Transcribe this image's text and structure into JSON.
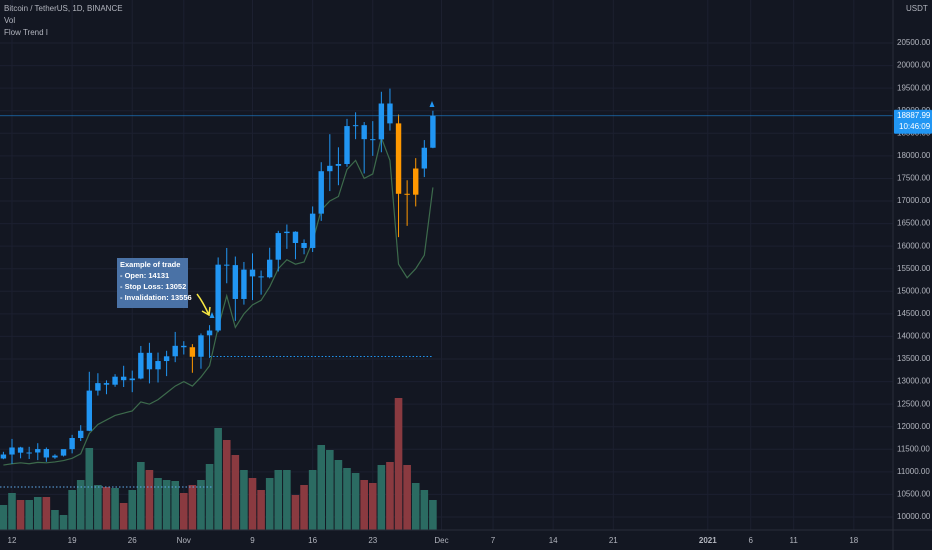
{
  "header": {
    "symbol": "Bitcoin / TetherUS, 1D, BINANCE",
    "indicators": [
      "Vol",
      "Flow Trend I"
    ]
  },
  "chart_data": {
    "type": "candlestick",
    "y_unit": "USDT",
    "categories": [
      null,
      "12",
      null,
      null,
      null,
      null,
      null,
      null,
      "19",
      null,
      null,
      null,
      null,
      null,
      null,
      "26",
      null,
      null,
      null,
      null,
      null,
      "Nov",
      null,
      null,
      null,
      null,
      null,
      null,
      null,
      "9",
      null,
      null,
      null,
      null,
      null,
      null,
      "16",
      null,
      null,
      null,
      null,
      null,
      null,
      "23",
      null,
      null,
      null,
      null,
      null,
      null,
      null,
      "Dec",
      null,
      null,
      null,
      null,
      null,
      "7",
      null,
      null,
      null,
      null,
      null,
      null,
      "14",
      null,
      null,
      null,
      null,
      null,
      null,
      "21",
      null,
      null,
      null,
      null,
      null,
      null,
      null,
      null,
      null,
      null,
      "2021",
      null,
      null,
      null,
      null,
      "6",
      null,
      null,
      null,
      null,
      "11",
      null,
      null,
      null,
      null,
      null,
      null,
      "18",
      null,
      null,
      null,
      null
    ],
    "open": [
      11296,
      11384,
      11540,
      11425,
      11429,
      11505,
      11319,
      11360,
      11503,
      11750,
      11910,
      12800,
      12966,
      12931,
      13108,
      13031,
      13068,
      13637,
      13272,
      13455,
      13560,
      13792,
      13761,
      13550,
      14025,
      14131,
      15590,
      15580,
      14830,
      15480,
      15330,
      15310,
      15700,
      16290,
      16320,
      16070,
      15960,
      16720,
      17660,
      17780,
      17820,
      18660,
      18680,
      18370,
      18365,
      19160,
      18720,
      17160,
      17140,
      17720,
      18180,
      null,
      null,
      null,
      null,
      null,
      null,
      null,
      null,
      null,
      null,
      null,
      null,
      null,
      null,
      null,
      null,
      null,
      null,
      null,
      null,
      null,
      null,
      null,
      null,
      null,
      null,
      null,
      null,
      null,
      null,
      null,
      null,
      null,
      null,
      null,
      null,
      null,
      null,
      null,
      null,
      null,
      null,
      null,
      null,
      null,
      null,
      null,
      null,
      null,
      null,
      null,
      null,
      null
    ],
    "high": [
      11444,
      11730,
      11555,
      11555,
      11635,
      11540,
      11390,
      11490,
      11820,
      12034,
      13217,
      13185,
      13027,
      13164,
      13350,
      13244,
      13789,
      13859,
      13642,
      13682,
      14100,
      13895,
      13830,
      14066,
      14250,
      15750,
      15960,
      15770,
      15650,
      15840,
      15460,
      15965,
      16340,
      16480,
      16330,
      16150,
      16880,
      17860,
      18480,
      18190,
      18820,
      18965,
      18750,
      18770,
      19420,
      19490,
      18915,
      17460,
      17950,
      18350,
      19000,
      null,
      null,
      null,
      null,
      null,
      null,
      null,
      null,
      null,
      null,
      null,
      null,
      null,
      null,
      null,
      null,
      null,
      null,
      null,
      null,
      null,
      null,
      null,
      null,
      null,
      null,
      null,
      null,
      null,
      null,
      null,
      null,
      null,
      null,
      null,
      null,
      null,
      null,
      null,
      null,
      null,
      null,
      null,
      null,
      null,
      null,
      null,
      null,
      null,
      null,
      null,
      null,
      null
    ],
    "low": [
      11280,
      11177,
      11300,
      11285,
      11260,
      11223,
      11290,
      11340,
      11410,
      11683,
      11900,
      12690,
      12720,
      12885,
      12880,
      12765,
      13050,
      12960,
      12980,
      13121,
      13430,
      13600,
      13195,
      13284,
      13525,
      14094,
      15178,
      14344,
      14705,
      14805,
      14926,
      15286,
      15440,
      15940,
      15710,
      15820,
      15870,
      16560,
      17220,
      17350,
      17760,
      18370,
      17610,
      18000,
      18080,
      18560,
      16200,
      16450,
      16880,
      17530,
      18170,
      null,
      null,
      null,
      null,
      null,
      null,
      null,
      null,
      null,
      null,
      null,
      null,
      null,
      null,
      null,
      null,
      null,
      null,
      null,
      null,
      null,
      null,
      null,
      null,
      null,
      null,
      null,
      null,
      null,
      null,
      null,
      null,
      null,
      null,
      null,
      null,
      null,
      null,
      null,
      null,
      null,
      null,
      null,
      null,
      null,
      null,
      null,
      null,
      null,
      null,
      null,
      null,
      null
    ],
    "close": [
      11384,
      11540,
      11425,
      11429,
      11505,
      11319,
      11360,
      11503,
      11750,
      11910,
      12800,
      12966,
      12931,
      13108,
      13031,
      13068,
      13637,
      13272,
      13455,
      13560,
      13792,
      13761,
      13550,
      14025,
      14131,
      15590,
      15580,
      14830,
      15480,
      15330,
      15310,
      15700,
      16290,
      16320,
      16070,
      15960,
      16720,
      17660,
      17780,
      17820,
      18660,
      18680,
      18370,
      18365,
      19160,
      18720,
      17160,
      17140,
      17720,
      18180,
      18887.99,
      null,
      null,
      null,
      null,
      null,
      null,
      null,
      null,
      null,
      null,
      null,
      null,
      null,
      null,
      null,
      null,
      null,
      null,
      null,
      null,
      null,
      null,
      null,
      null,
      null,
      null,
      null,
      null,
      null,
      null,
      null,
      null,
      null,
      null,
      null,
      null,
      null,
      null,
      null,
      null,
      null,
      null,
      null,
      null,
      null,
      null,
      null,
      null,
      null,
      null,
      null,
      null,
      null
    ],
    "candle_colors": [
      "#2196f3",
      "#2196f3",
      "#2196f3",
      "#2196f3",
      "#2196f3",
      "#2196f3",
      "#2196f3",
      "#2196f3",
      "#2196f3",
      "#2196f3",
      "#2196f3",
      "#2196f3",
      "#2196f3",
      "#2196f3",
      "#2196f3",
      "#2196f3",
      "#2196f3",
      "#2196f3",
      "#2196f3",
      "#2196f3",
      "#2196f3",
      "#2196f3",
      "#ff9800",
      "#2196f3",
      "#2196f3",
      "#2196f3",
      "#2196f3",
      "#2196f3",
      "#2196f3",
      "#2196f3",
      "#2196f3",
      "#2196f3",
      "#2196f3",
      "#2196f3",
      "#2196f3",
      "#2196f3",
      "#2196f3",
      "#2196f3",
      "#2196f3",
      "#2196f3",
      "#2196f3",
      "#2196f3",
      "#2196f3",
      "#2196f3",
      "#2196f3",
      "#2196f3",
      "#ff9800",
      "#ff9800",
      "#ff9800",
      "#2196f3",
      "#2196f3",
      null,
      null,
      null,
      null,
      null,
      null,
      null,
      null,
      null,
      null,
      null,
      null,
      null,
      null,
      null,
      null,
      null,
      null,
      null,
      null,
      null,
      null,
      null,
      null,
      null,
      null,
      null,
      null,
      null,
      null,
      null,
      null,
      null,
      null,
      null,
      null,
      null,
      null,
      null,
      null,
      null,
      null,
      null,
      null,
      null,
      null,
      null,
      null,
      null,
      null,
      null,
      null,
      null
    ],
    "volume": [
      25000,
      37000,
      30000,
      30000,
      33000,
      33000,
      20000,
      15000,
      40000,
      50000,
      82000,
      45000,
      43000,
      42000,
      27000,
      40000,
      68000,
      60000,
      52000,
      50000,
      49000,
      37000,
      45000,
      50000,
      66000,
      102000,
      90000,
      75000,
      60000,
      52000,
      40000,
      52000,
      60000,
      60000,
      35000,
      45000,
      60000,
      85000,
      80000,
      70000,
      62000,
      57000,
      50000,
      47000,
      65000,
      68000,
      132000,
      65000,
      47000,
      40000,
      30000,
      null,
      null,
      null,
      null,
      null,
      null,
      null,
      null,
      null,
      null,
      null,
      null,
      null,
      null,
      null,
      null,
      null,
      null,
      null,
      null,
      null,
      null,
      null,
      null,
      null,
      null,
      null,
      null,
      null,
      null,
      null,
      null,
      null,
      null,
      null,
      null,
      null,
      null,
      null,
      null,
      null,
      null,
      null,
      null,
      null,
      null,
      null,
      null,
      null,
      null,
      null,
      null,
      null
    ],
    "volume_lim": [
      0,
      150000
    ],
    "volume_up_color": "#2b6b62",
    "volume_down_color": "#8a3a40",
    "trend": [
      11150,
      11180,
      11200,
      11180,
      11210,
      11200,
      11220,
      11250,
      11300,
      11400,
      11850,
      12050,
      12150,
      12250,
      12300,
      12350,
      12550,
      12500,
      12600,
      12750,
      12900,
      13000,
      12900,
      13100,
      13350,
      14200,
      14900,
      14200,
      14500,
      14700,
      14800,
      15100,
      15500,
      15700,
      15600,
      15650,
      16100,
      16800,
      17000,
      17100,
      17700,
      17900,
      17500,
      17600,
      18400,
      17900,
      15600,
      15300,
      15500,
      15800,
      17300,
      null,
      null,
      null,
      null,
      null,
      null,
      null,
      null,
      null,
      null,
      null,
      null,
      null,
      null,
      null,
      null,
      null,
      null,
      null,
      null,
      null,
      null,
      null,
      null,
      null,
      null,
      null,
      null,
      null,
      null,
      null,
      null,
      null,
      null,
      null,
      null,
      null,
      null,
      null,
      null,
      null,
      null,
      null,
      null,
      null,
      null,
      null,
      null,
      null,
      null,
      null,
      null,
      null
    ],
    "trend_color": "#3d6b4c",
    "ylim": [
      9712,
      21453
    ],
    "yticks": [
      {
        "value": 10000,
        "label": "10000.00"
      },
      {
        "value": 10500,
        "label": "10500.00"
      },
      {
        "value": 11000,
        "label": "11000.00"
      },
      {
        "value": 11500,
        "label": "11500.00"
      },
      {
        "value": 12000,
        "label": "12000.00"
      },
      {
        "value": 12500,
        "label": "12500.00"
      },
      {
        "value": 13000,
        "label": "13000.00"
      },
      {
        "value": 13500,
        "label": "13500.00"
      },
      {
        "value": 14000,
        "label": "14000.00"
      },
      {
        "value": 14500,
        "label": "14500.00"
      },
      {
        "value": 15000,
        "label": "15000.00"
      },
      {
        "value": 15500,
        "label": "15500.00"
      },
      {
        "value": 16000,
        "label": "16000.00"
      },
      {
        "value": 16500,
        "label": "16500.00"
      },
      {
        "value": 17000,
        "label": "17000.00"
      },
      {
        "value": 17500,
        "label": "17500.00"
      },
      {
        "value": 18000,
        "label": "18000.00"
      },
      {
        "value": 18500,
        "label": "18500.00"
      },
      {
        "value": 19000,
        "label": "19000.00"
      },
      {
        "value": 19500,
        "label": "19500.00"
      },
      {
        "value": 20000,
        "label": "20000.00"
      },
      {
        "value": 20500,
        "label": "20500.00"
      }
    ],
    "grid": true,
    "last_price": 18887.99,
    "countdown": "10:46:09",
    "invalidation_level": 13556,
    "annotation": [
      "Example of trade",
      "- Open: 14131",
      "- Stop Loss: 13052",
      "- Invalidation: 13556"
    ]
  }
}
